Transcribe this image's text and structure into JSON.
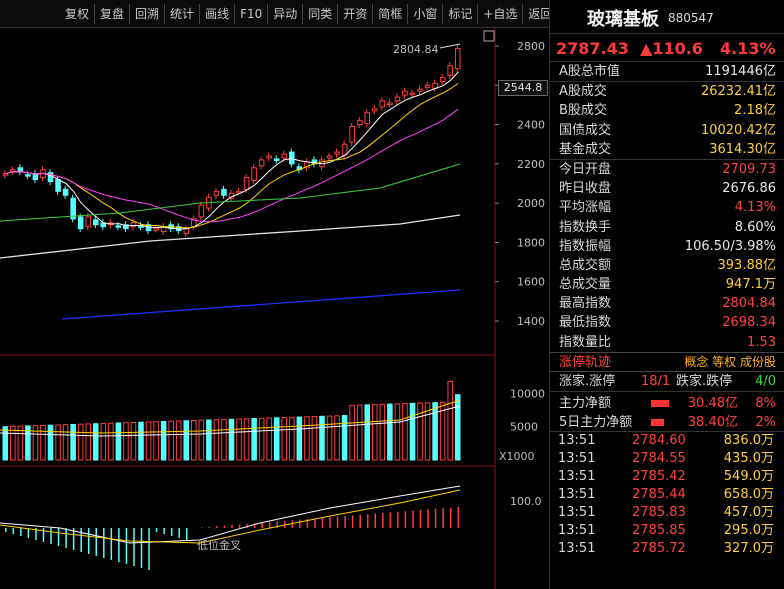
{
  "toolbar": {
    "buttons": [
      "复权",
      "复盘",
      "回溯",
      "统计",
      "画线",
      "F10",
      "异动",
      "同类",
      "开资",
      "简框",
      "小窗",
      "标记",
      "+自选",
      "返回"
    ]
  },
  "chart": {
    "price_axis_labels": [
      "2800",
      "2600",
      "2400",
      "2200",
      "2000",
      "1800",
      "1600",
      "1400"
    ],
    "current_price_tag": "2544.8",
    "high_annotation": "2804.84",
    "volume_axis_labels": [
      "10000",
      "5000"
    ],
    "volume_unit": "X1000",
    "macd_axis_label": "100.0",
    "macd_annotation": "低位金叉",
    "colors": {
      "up": "#ff3b3b",
      "down": "#54ffff",
      "ma5": "#ffffff",
      "ma10": "#ffd200",
      "ma20": "#ff40ff",
      "ma60": "#3ccf3c",
      "ma120": "#e6e6e6",
      "ma250": "#2030ff"
    }
  },
  "stock": {
    "name": "玻璃基板",
    "code": "880547"
  },
  "quote": {
    "price": "2787.43",
    "change": "▲110.6",
    "pct": "4.13%"
  },
  "stats_a": [
    {
      "label": "A股总市值",
      "value": "1191446亿",
      "color": "#e8e8e8"
    }
  ],
  "stats_b": [
    {
      "label": "A股成交",
      "value": "26232.41亿",
      "color": "#ffcf40"
    },
    {
      "label": "B股成交",
      "value": "2.18亿",
      "color": "#ffcf40"
    },
    {
      "label": "国债成交",
      "value": "10020.42亿",
      "color": "#ffcf40"
    },
    {
      "label": "基金成交",
      "value": "3614.30亿",
      "color": "#ffcf40"
    }
  ],
  "stats_c": [
    {
      "label": "今日开盘",
      "value": "2709.73",
      "color": "#ff4040"
    },
    {
      "label": "昨日收盘",
      "value": "2676.86",
      "color": "#e8e8e8"
    },
    {
      "label": "平均涨幅",
      "value": "4.13%",
      "color": "#ff4040"
    },
    {
      "label": "指数换手",
      "value": "8.60%",
      "color": "#e8e8e8"
    },
    {
      "label": "指数振幅",
      "value": "106.50/3.98%",
      "color": "#e8e8e8"
    },
    {
      "label": "总成交额",
      "value": "393.88亿",
      "color": "#ffcf40"
    },
    {
      "label": "总成交量",
      "value": "947.1万",
      "color": "#ffcf40"
    },
    {
      "label": "最高指数",
      "value": "2804.84",
      "color": "#ff4040"
    },
    {
      "label": "最低指数",
      "value": "2698.34",
      "color": "#ff4040"
    },
    {
      "label": "指数量比",
      "value": "1.53",
      "color": "#ff4040"
    }
  ],
  "tabs": {
    "main": "涨停轨迹",
    "links": "概念 等权 成份股"
  },
  "updown": {
    "up_label": "涨家.涨停",
    "up_value": "18/1",
    "down_label": "跌家.跌停",
    "down_value": "4/0"
  },
  "flows": [
    {
      "label": "主力净额",
      "value": "30.48亿",
      "pct": "8%",
      "bar": 0.8
    },
    {
      "label": "5日主力净额",
      "value": "38.40亿",
      "pct": "2%",
      "bar": 0.6
    }
  ],
  "ticks": [
    {
      "time": "13:51",
      "price": "2784.60",
      "vol": "836.0万"
    },
    {
      "time": "13:51",
      "price": "2784.55",
      "vol": "435.0万"
    },
    {
      "time": "13:51",
      "price": "2785.42",
      "vol": "549.0万"
    },
    {
      "time": "13:51",
      "price": "2785.44",
      "vol": "658.0万"
    },
    {
      "time": "13:51",
      "price": "2785.83",
      "vol": "457.0万"
    },
    {
      "time": "13:51",
      "price": "2785.85",
      "vol": "295.0万"
    },
    {
      "time": "13:51",
      "price": "2785.72",
      "vol": "327.0万"
    }
  ]
}
